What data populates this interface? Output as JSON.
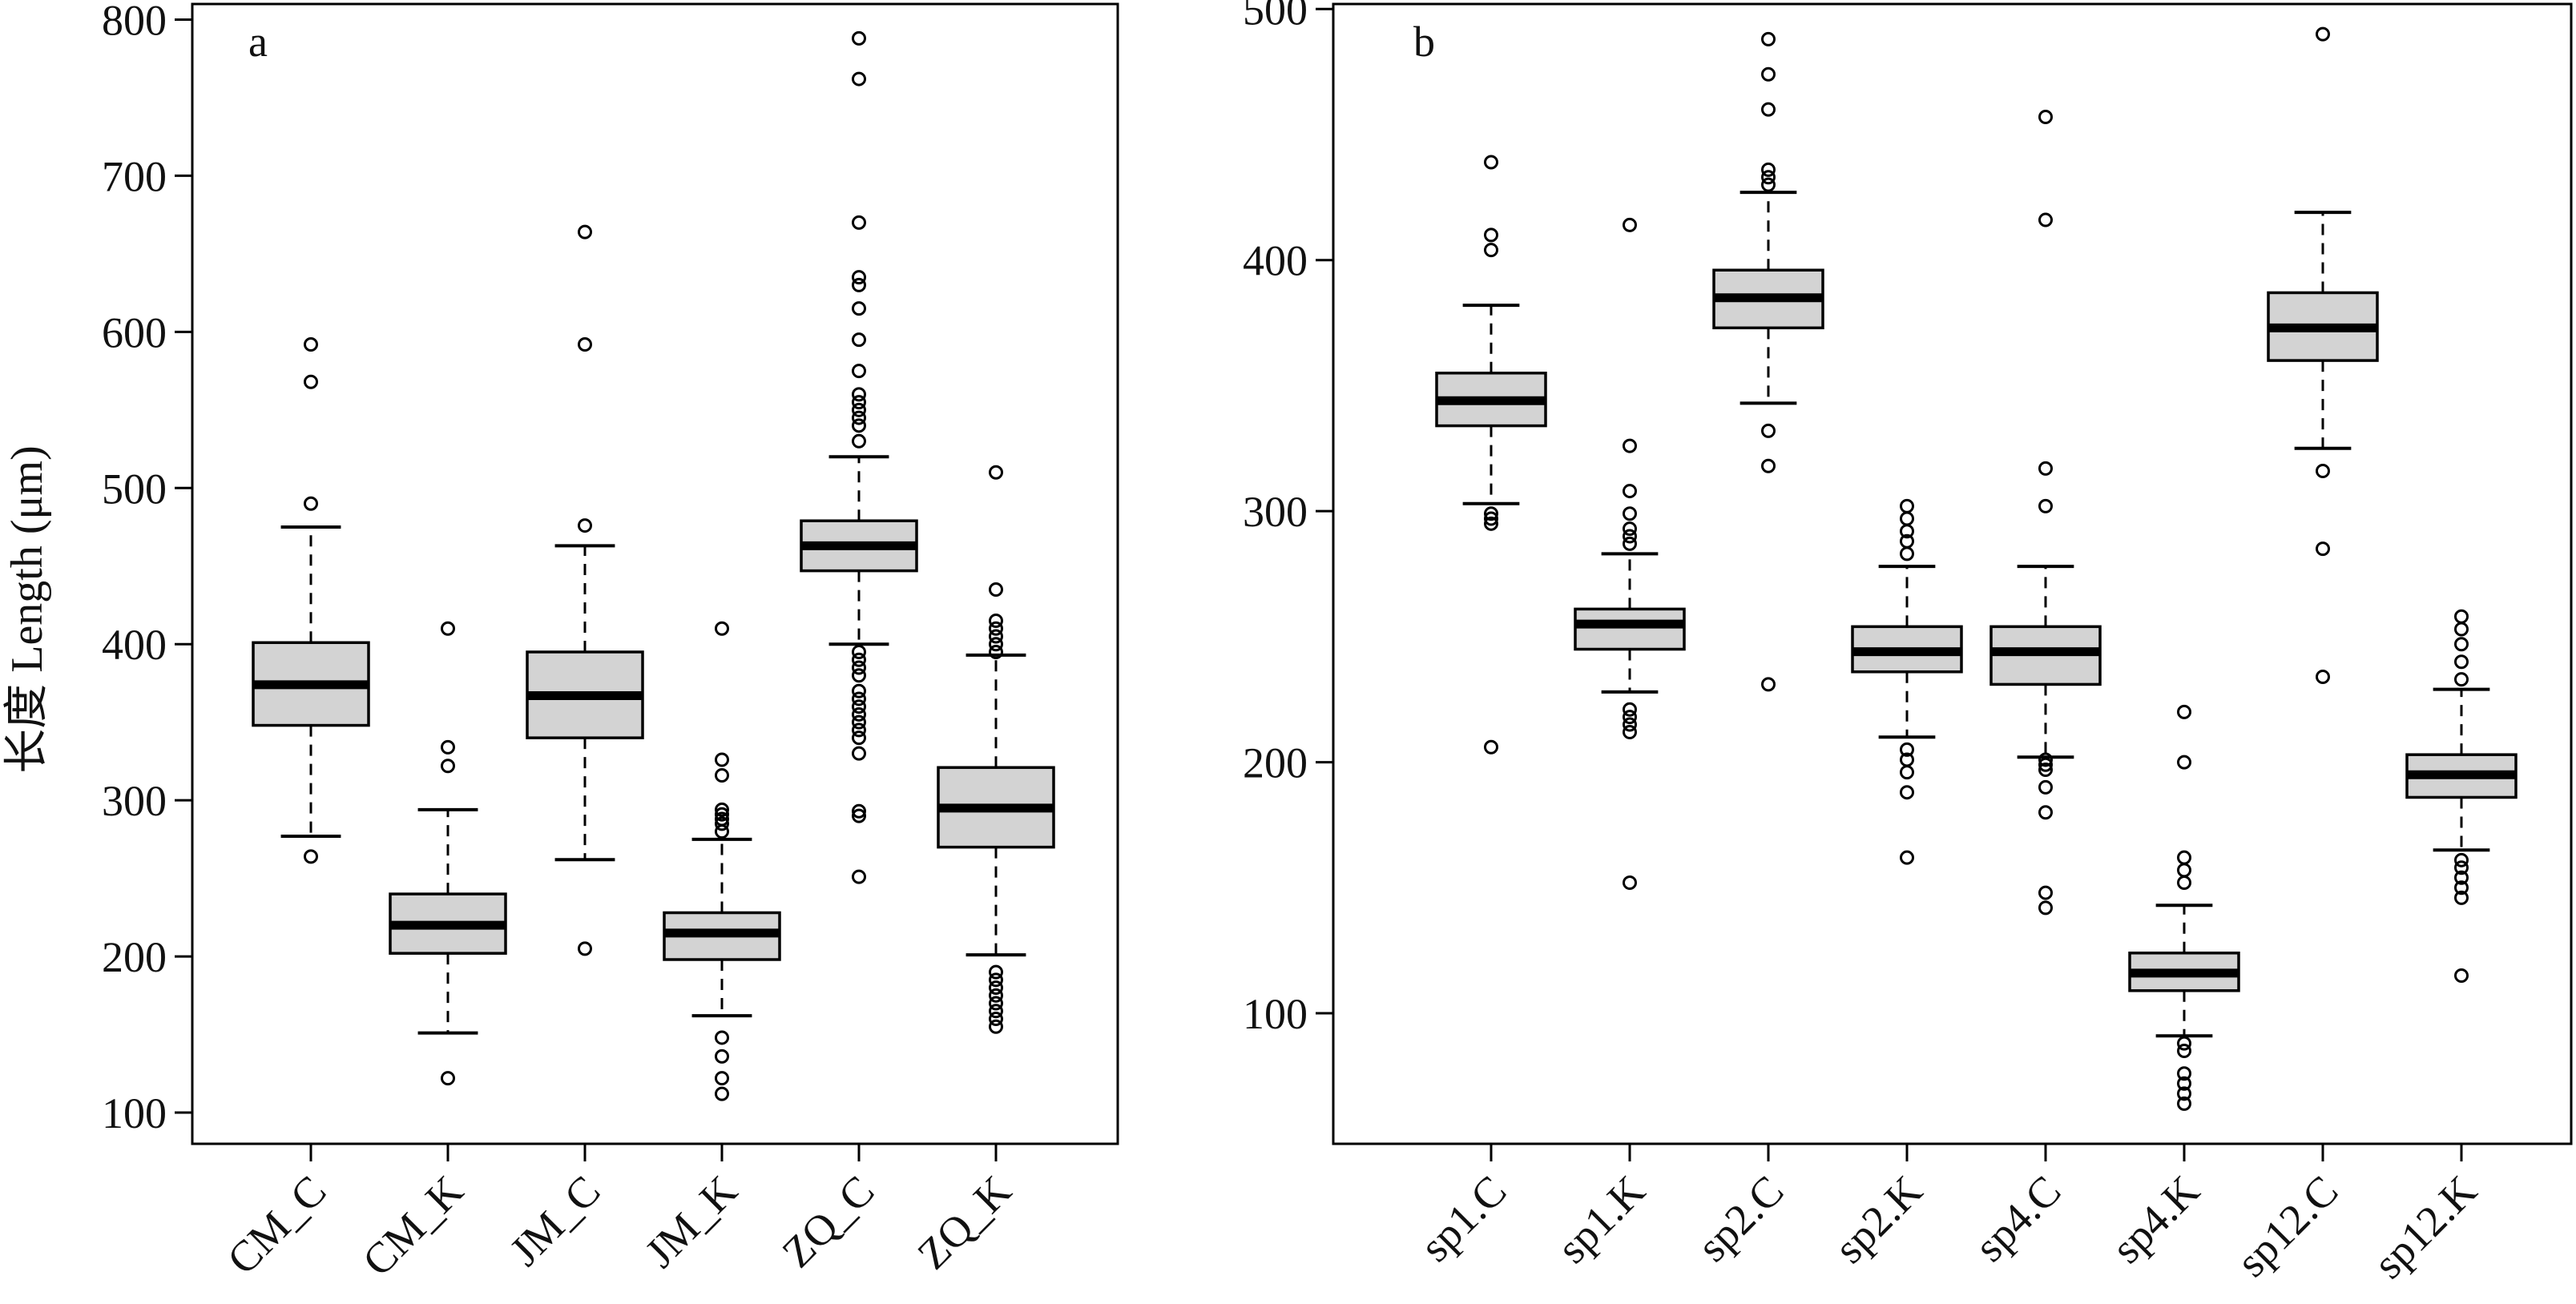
{
  "y_axis_label": "长度 Length (μm)",
  "chart_data": [
    {
      "type": "box",
      "panel_label": "a",
      "ylabel": "长度 Length (μm)",
      "ylim": [
        80,
        810
      ],
      "yticks": [
        100,
        200,
        300,
        400,
        500,
        600,
        700,
        800
      ],
      "categories": [
        "CM_C",
        "CM_K",
        "JM_C",
        "JM_K",
        "ZQ_C",
        "ZQ_K"
      ],
      "boxes": [
        {
          "label": "CM_C",
          "whisker_low": 277,
          "q1": 348,
          "median": 374,
          "q3": 401,
          "whisker_high": 475,
          "outliers": [
            264,
            490,
            568,
            592
          ]
        },
        {
          "label": "CM_K",
          "whisker_low": 151,
          "q1": 202,
          "median": 220,
          "q3": 240,
          "whisker_high": 294,
          "outliers": [
            122,
            322,
            334,
            410
          ]
        },
        {
          "label": "JM_C",
          "whisker_low": 262,
          "q1": 340,
          "median": 367,
          "q3": 395,
          "whisker_high": 463,
          "outliers": [
            205,
            476,
            592,
            664
          ]
        },
        {
          "label": "JM_K",
          "whisker_low": 162,
          "q1": 198,
          "median": 215,
          "q3": 228,
          "whisker_high": 275,
          "outliers": [
            112,
            122,
            136,
            148,
            280,
            285,
            288,
            291,
            294,
            316,
            326,
            410
          ]
        },
        {
          "label": "ZQ_C",
          "whisker_low": 400,
          "q1": 447,
          "median": 463,
          "q3": 479,
          "whisker_high": 520,
          "outliers": [
            251,
            290,
            293,
            330,
            340,
            345,
            350,
            355,
            360,
            365,
            370,
            380,
            385,
            390,
            395,
            530,
            540,
            545,
            550,
            555,
            560,
            575,
            595,
            615,
            630,
            635,
            670,
            762,
            788
          ]
        },
        {
          "label": "ZQ_K",
          "whisker_low": 201,
          "q1": 270,
          "median": 295,
          "q3": 321,
          "whisker_high": 393,
          "outliers": [
            155,
            160,
            165,
            170,
            175,
            180,
            185,
            190,
            395,
            400,
            405,
            410,
            415,
            435,
            510
          ]
        }
      ]
    },
    {
      "type": "box",
      "panel_label": "b",
      "ylabel": "",
      "ylim": [
        48,
        502
      ],
      "yticks": [
        100,
        200,
        300,
        400,
        500
      ],
      "categories": [
        "sp1.C",
        "sp1.K",
        "sp2.C",
        "sp2.K",
        "sp4.C",
        "sp4.K",
        "sp12.C",
        "sp12.K"
      ],
      "boxes": [
        {
          "label": "sp1.C",
          "whisker_low": 303,
          "q1": 334,
          "median": 344,
          "q3": 355,
          "whisker_high": 382,
          "outliers": [
            206,
            295,
            297,
            299,
            404,
            410,
            439
          ]
        },
        {
          "label": "sp1.K",
          "whisker_low": 228,
          "q1": 245,
          "median": 255,
          "q3": 261,
          "whisker_high": 283,
          "outliers": [
            152,
            212,
            215,
            218,
            221,
            287,
            290,
            293,
            299,
            308,
            326,
            414
          ]
        },
        {
          "label": "sp2.C",
          "whisker_low": 343,
          "q1": 373,
          "median": 385,
          "q3": 396,
          "whisker_high": 427,
          "outliers": [
            231,
            318,
            332,
            430,
            433,
            436,
            460,
            474,
            488
          ]
        },
        {
          "label": "sp2.K",
          "whisker_low": 210,
          "q1": 236,
          "median": 244,
          "q3": 254,
          "whisker_high": 278,
          "outliers": [
            162,
            188,
            196,
            201,
            205,
            283,
            288,
            292,
            297,
            302
          ]
        },
        {
          "label": "sp4.C",
          "whisker_low": 202,
          "q1": 231,
          "median": 244,
          "q3": 254,
          "whisker_high": 278,
          "outliers": [
            142,
            148,
            180,
            190,
            197,
            199,
            201,
            302,
            317,
            416,
            457
          ]
        },
        {
          "label": "sp4.K",
          "whisker_low": 91,
          "q1": 109,
          "median": 116,
          "q3": 124,
          "whisker_high": 143,
          "outliers": [
            64,
            68,
            72,
            76,
            85,
            88,
            152,
            157,
            162,
            200,
            220
          ]
        },
        {
          "label": "sp12.C",
          "whisker_low": 325,
          "q1": 360,
          "median": 373,
          "q3": 387,
          "whisker_high": 419,
          "outliers": [
            234,
            285,
            316,
            490
          ]
        },
        {
          "label": "sp12.K",
          "whisker_low": 165,
          "q1": 186,
          "median": 195,
          "q3": 203,
          "whisker_high": 229,
          "outliers": [
            115,
            146,
            150,
            154,
            158,
            161,
            233,
            240,
            247,
            253,
            258
          ]
        }
      ]
    }
  ]
}
